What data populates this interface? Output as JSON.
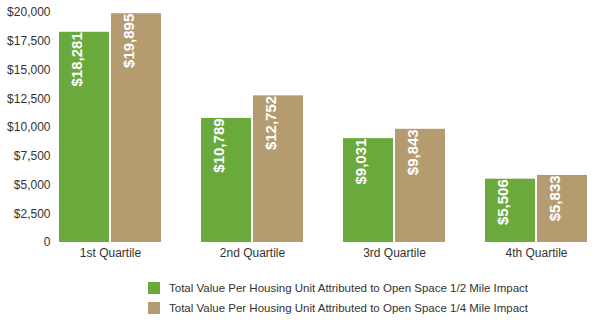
{
  "chart_data": {
    "type": "bar",
    "categories": [
      "1st Quartile",
      "2nd Quartile",
      "3rd Quartile",
      "4th Quartile"
    ],
    "series": [
      {
        "name": "Total Value Per Housing Unit Attributed to Open Space 1/2 Mile Impact",
        "color": "#6aaa3c",
        "values": [
          18281,
          10789,
          9031,
          5506
        ],
        "value_labels": [
          "$18,281",
          "$10,789",
          "$9,031",
          "$5,506"
        ]
      },
      {
        "name": "Total Value Per Housing Unit Attributed to Open Space 1/4 Mile Impact",
        "color": "#b49b70",
        "values": [
          19895,
          12752,
          9843,
          5833
        ],
        "value_labels": [
          "$19,895",
          "$12,752",
          "$9,843",
          "$5,833"
        ]
      }
    ],
    "ylim": [
      0,
      20000
    ],
    "yticks": [
      0,
      {
        "value": 2500,
        "label": "$2,500"
      },
      {
        "value": 5000,
        "label": "$5,000"
      },
      {
        "value": 7500,
        "label": "$7,500"
      },
      {
        "value": 10000,
        "label": "$10,000"
      },
      {
        "value": 12500,
        "label": "$12,500"
      },
      {
        "value": 15000,
        "label": "$15,000"
      },
      {
        "value": 17500,
        "label": "$17,500"
      },
      {
        "value": 20000,
        "label": "$20,000"
      }
    ],
    "grid": false,
    "data_labels": true,
    "legend": "bottom"
  }
}
